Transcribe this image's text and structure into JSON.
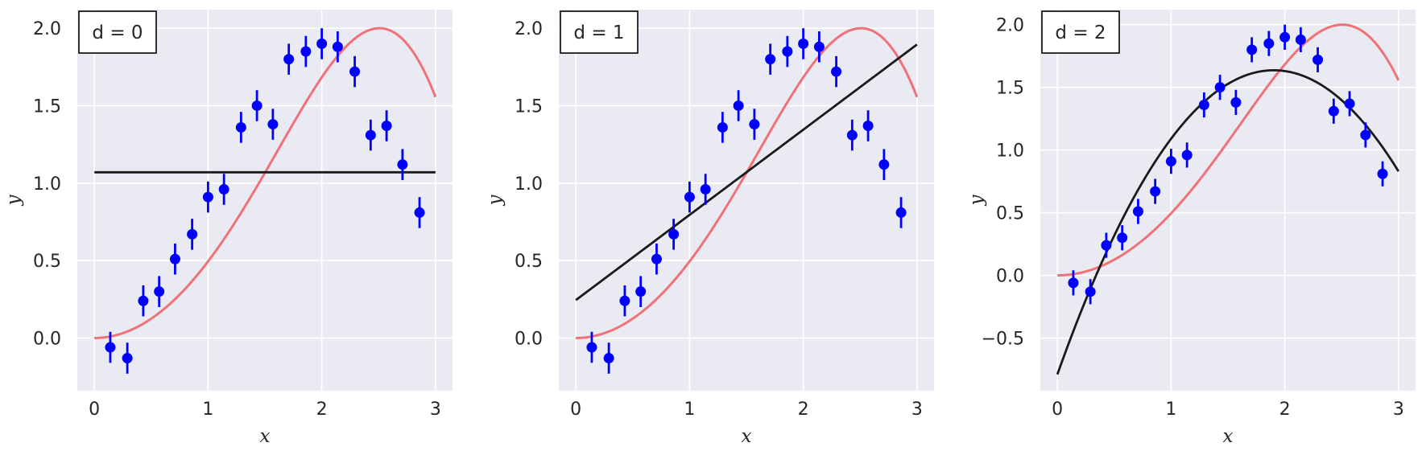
{
  "colors": {
    "plot_background": "#eaeaf2",
    "grid": "#ffffff",
    "true_curve": "#f07178",
    "fit_line": "#1a1a1a",
    "points": "#0000ff"
  },
  "chart_data": [
    {
      "type": "scatter",
      "title": "d = 0",
      "xlabel": "x",
      "ylabel": "y",
      "xlim": [
        -0.15,
        3.15
      ],
      "ylim": [
        -0.34,
        2.12
      ],
      "xticks": [
        0,
        1,
        2,
        3
      ],
      "xtick_labels": [
        "0",
        "1",
        "2",
        "3"
      ],
      "yticks": [
        0.0,
        0.5,
        1.0,
        1.5,
        2.0
      ],
      "ytick_labels": [
        "0.0",
        "0.5",
        "1.0",
        "1.5",
        "2.0"
      ],
      "grid": true,
      "legend_position": "top-left",
      "true_curve_function": "2*sin(x^2 / 4)",
      "fit_degree": 0,
      "fit_coefficients": [
        1.07
      ],
      "points": {
        "x": [
          0.14,
          0.29,
          0.43,
          0.57,
          0.71,
          0.86,
          1.0,
          1.14,
          1.29,
          1.43,
          1.57,
          1.71,
          1.86,
          2.0,
          2.14,
          2.29,
          2.43,
          2.57,
          2.71,
          2.86
        ],
        "y": [
          -0.06,
          -0.13,
          0.24,
          0.3,
          0.51,
          0.67,
          0.91,
          0.96,
          1.36,
          1.5,
          1.38,
          1.8,
          1.85,
          1.9,
          1.88,
          1.72,
          1.31,
          1.37,
          1.12,
          0.81
        ],
        "yerr": [
          0.1,
          0.1,
          0.1,
          0.1,
          0.1,
          0.1,
          0.1,
          0.1,
          0.1,
          0.1,
          0.1,
          0.1,
          0.1,
          0.1,
          0.1,
          0.1,
          0.1,
          0.1,
          0.1,
          0.1
        ]
      }
    },
    {
      "type": "scatter",
      "title": "d = 1",
      "xlabel": "x",
      "ylabel": "y",
      "xlim": [
        -0.15,
        3.15
      ],
      "ylim": [
        -0.34,
        2.12
      ],
      "xticks": [
        0,
        1,
        2,
        3
      ],
      "xtick_labels": [
        "0",
        "1",
        "2",
        "3"
      ],
      "yticks": [
        0.0,
        0.5,
        1.0,
        1.5,
        2.0
      ],
      "ytick_labels": [
        "0.0",
        "0.5",
        "1.0",
        "1.5",
        "2.0"
      ],
      "grid": true,
      "legend_position": "top-left",
      "true_curve_function": "2*sin(x^2 / 4)",
      "fit_degree": 1,
      "fit_coefficients": [
        0.245,
        0.55
      ],
      "points": {
        "x": [
          0.14,
          0.29,
          0.43,
          0.57,
          0.71,
          0.86,
          1.0,
          1.14,
          1.29,
          1.43,
          1.57,
          1.71,
          1.86,
          2.0,
          2.14,
          2.29,
          2.43,
          2.57,
          2.71,
          2.86
        ],
        "y": [
          -0.06,
          -0.13,
          0.24,
          0.3,
          0.51,
          0.67,
          0.91,
          0.96,
          1.36,
          1.5,
          1.38,
          1.8,
          1.85,
          1.9,
          1.88,
          1.72,
          1.31,
          1.37,
          1.12,
          0.81
        ],
        "yerr": [
          0.1,
          0.1,
          0.1,
          0.1,
          0.1,
          0.1,
          0.1,
          0.1,
          0.1,
          0.1,
          0.1,
          0.1,
          0.1,
          0.1,
          0.1,
          0.1,
          0.1,
          0.1,
          0.1,
          0.1
        ]
      }
    },
    {
      "type": "scatter",
      "title": "d = 2",
      "xlabel": "x",
      "ylabel": "y",
      "xlim": [
        -0.15,
        3.15
      ],
      "ylim": [
        -0.92,
        2.12
      ],
      "xticks": [
        0,
        1,
        2,
        3
      ],
      "xtick_labels": [
        "0",
        "1",
        "2",
        "3"
      ],
      "yticks": [
        -0.5,
        0.0,
        0.5,
        1.0,
        1.5,
        2.0
      ],
      "ytick_labels": [
        "−0.5",
        "0.0",
        "0.5",
        "1.0",
        "1.5",
        "2.0"
      ],
      "grid": true,
      "legend_position": "top-left",
      "true_curve_function": "2*sin(x^2 / 4)",
      "fit_degree": 2,
      "fit_coefficients": [
        -0.79,
        2.55,
        -0.67
      ],
      "points": {
        "x": [
          0.14,
          0.29,
          0.43,
          0.57,
          0.71,
          0.86,
          1.0,
          1.14,
          1.29,
          1.43,
          1.57,
          1.71,
          1.86,
          2.0,
          2.14,
          2.29,
          2.43,
          2.57,
          2.71,
          2.86
        ],
        "y": [
          -0.06,
          -0.13,
          0.24,
          0.3,
          0.51,
          0.67,
          0.91,
          0.96,
          1.36,
          1.5,
          1.38,
          1.8,
          1.85,
          1.9,
          1.88,
          1.72,
          1.31,
          1.37,
          1.12,
          0.81
        ],
        "yerr": [
          0.1,
          0.1,
          0.1,
          0.1,
          0.1,
          0.1,
          0.1,
          0.1,
          0.1,
          0.1,
          0.1,
          0.1,
          0.1,
          0.1,
          0.1,
          0.1,
          0.1,
          0.1,
          0.1,
          0.1
        ]
      }
    }
  ]
}
